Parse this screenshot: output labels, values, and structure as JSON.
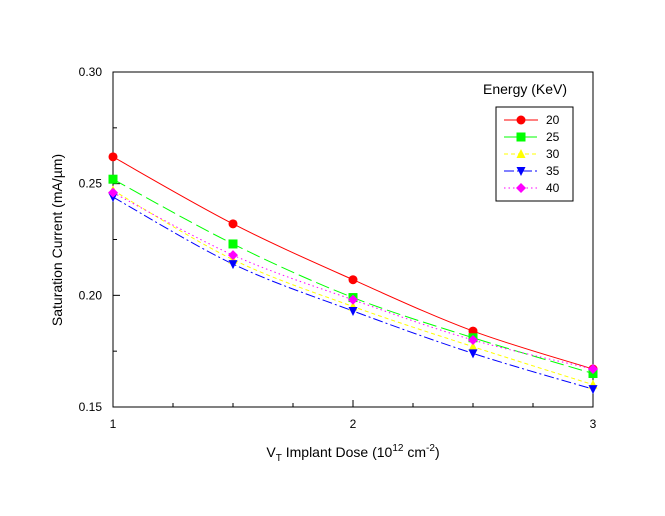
{
  "chart_data": {
    "type": "line",
    "xlabel": {
      "prefix": "V",
      "sub": "T",
      "middle": " Implant Dose (10",
      "sup1": "12",
      "unit": " cm",
      "sup2": "-2",
      "suffix": ")"
    },
    "ylabel": "Saturation Current (mA/µm)",
    "x_ticks": [
      "1",
      "2",
      "3"
    ],
    "y_ticks": [
      "0.15",
      "0.20",
      "0.25",
      "0.30"
    ],
    "x_tick_values": [
      1,
      2,
      3
    ],
    "y_tick_values": [
      0.15,
      0.2,
      0.25,
      0.3
    ],
    "xlim": [
      1,
      3
    ],
    "ylim": [
      0.15,
      0.3
    ],
    "legend": {
      "title": "Energy (KeV)",
      "placement": "top-right"
    },
    "x": [
      1.0,
      1.5,
      2.0,
      2.5,
      3.0
    ],
    "series": [
      {
        "name": "20",
        "color": "#ff0000",
        "marker": "circle",
        "dash": "solid",
        "values": [
          0.262,
          0.232,
          0.207,
          0.184,
          0.167
        ]
      },
      {
        "name": "25",
        "color": "#00ff00",
        "marker": "square",
        "dash": "long-dash",
        "values": [
          0.252,
          0.223,
          0.199,
          0.181,
          0.165
        ]
      },
      {
        "name": "30",
        "color": "#ffff00",
        "marker": "triangle-up",
        "dash": "short-dash",
        "values": [
          0.247,
          0.216,
          0.195,
          0.177,
          0.16
        ]
      },
      {
        "name": "35",
        "color": "#0000ff",
        "marker": "triangle-down",
        "dash": "dash-dot",
        "values": [
          0.244,
          0.214,
          0.193,
          0.174,
          0.158
        ]
      },
      {
        "name": "40",
        "color": "#ff00ff",
        "marker": "diamond",
        "dash": "dotted",
        "values": [
          0.246,
          0.218,
          0.198,
          0.18,
          0.167
        ]
      }
    ]
  }
}
